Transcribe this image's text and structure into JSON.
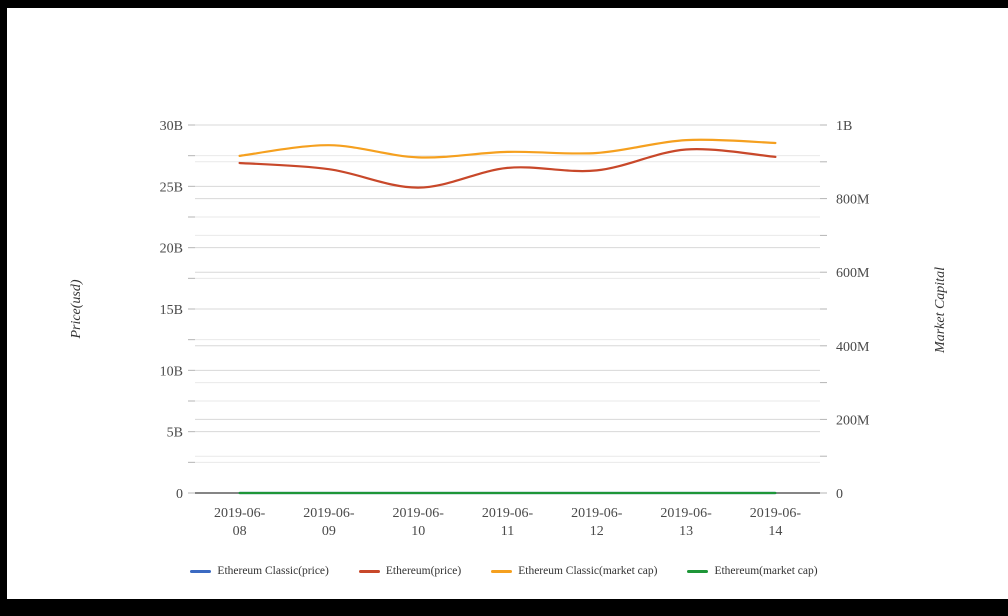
{
  "window": {
    "frame_color": "#000000",
    "background": "#ffffff"
  },
  "chart_data": {
    "type": "line",
    "title": "",
    "categories": [
      "2019-06-08",
      "2019-06-09",
      "2019-06-10",
      "2019-06-11",
      "2019-06-12",
      "2019-06-13",
      "2019-06-14"
    ],
    "x_tick_labels_wrapped": [
      [
        "2019-06-",
        "08"
      ],
      [
        "2019-06-",
        "09"
      ],
      [
        "2019-06-",
        "10"
      ],
      [
        "2019-06-",
        "11"
      ],
      [
        "2019-06-",
        "12"
      ],
      [
        "2019-06-",
        "13"
      ],
      [
        "2019-06-",
        "14"
      ]
    ],
    "series": [
      {
        "name": "Ethereum Classic(price)",
        "color": "#3B6AC2",
        "axis": "left",
        "unit": "B",
        "values": [
          0,
          0,
          0,
          0,
          0,
          0,
          0
        ]
      },
      {
        "name": "Ethereum(price)",
        "color": "#C8482A",
        "axis": "left",
        "unit": "B",
        "values": [
          26.9,
          26.4,
          24.9,
          26.5,
          26.3,
          28.0,
          27.4
        ]
      },
      {
        "name": "Ethereum Classic(market cap)",
        "color": "#F5A01F",
        "axis": "right",
        "unit": "M",
        "values": [
          916,
          945,
          912,
          927,
          924,
          959,
          951
        ]
      },
      {
        "name": "Ethereum(market cap)",
        "color": "#1E9638",
        "axis": "right",
        "unit": "M",
        "values": [
          0,
          0,
          0,
          0,
          0,
          0,
          0
        ]
      }
    ],
    "left_axis": {
      "title": "Price(usd)",
      "min": 0,
      "max": 30,
      "unit": "billions",
      "major_ticks": [
        0,
        5,
        10,
        15,
        20,
        25,
        30
      ],
      "major_tick_labels": [
        "0",
        "5B",
        "10B",
        "15B",
        "20B",
        "25B",
        "30B"
      ],
      "minor_step": 2.5
    },
    "right_axis": {
      "title": "Market Capital",
      "min": 0,
      "max": 1000,
      "unit": "millions",
      "major_ticks": [
        0,
        200,
        400,
        600,
        800,
        1000
      ],
      "major_tick_labels": [
        "0",
        "200M",
        "400M",
        "600M",
        "800M",
        "1B"
      ],
      "minor_step": 100
    },
    "grid": true,
    "legend_position": "bottom",
    "colors": {
      "axis_line": "#3c3c3c",
      "tick_mark": "#b5b5b5",
      "grid_major": "#d8d8d8",
      "grid_minor": "#e9e9e9",
      "tick_label": "#4a4a4a",
      "axis_title": "#333333"
    }
  }
}
